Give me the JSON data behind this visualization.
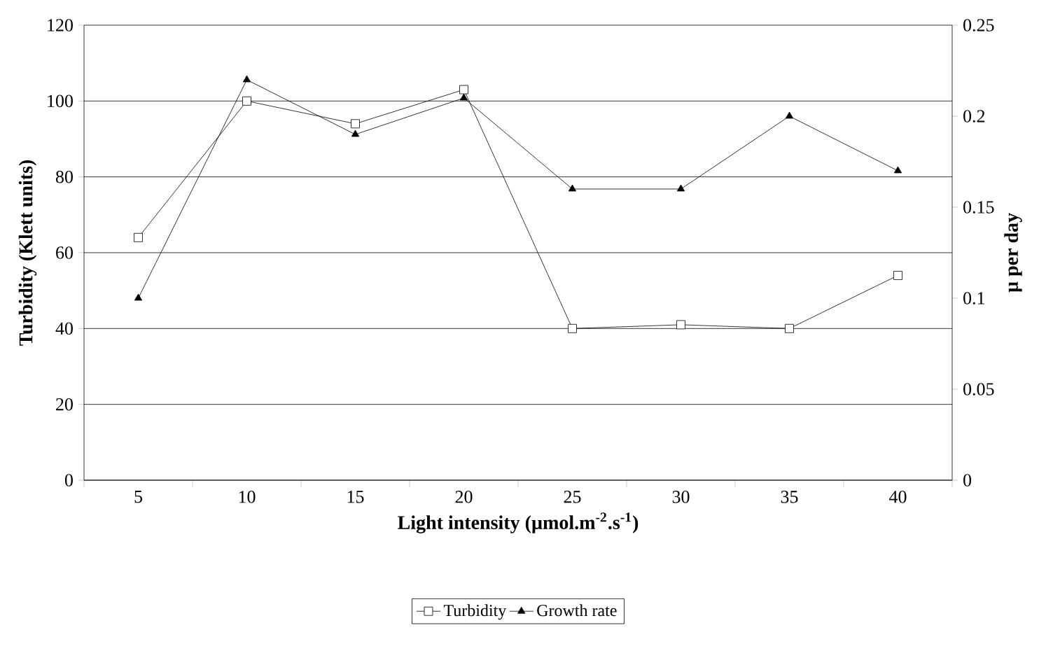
{
  "chart_data": {
    "type": "line",
    "xlabel": "Light intensity (**µ**mol.m$^{-2}$.s$^{-1}$)",
    "ylabel": "Turbidity (Klett units)",
    "y2label": "µ per day",
    "categories": [
      "5",
      "10",
      "15",
      "20",
      "25",
      "30",
      "35",
      "40"
    ],
    "series": [
      {
        "name": "Turbidity",
        "color": "#000000",
        "marker": "square",
        "values": [
          64,
          100,
          94,
          103,
          40,
          41,
          40,
          54
        ]
      },
      {
        "name": "Growth rate",
        "color": "#000000",
        "marker": "triangle",
        "axis": "y2",
        "values": [
          0.1,
          0.22,
          0.19,
          0.21,
          0.16,
          0.16,
          0.2,
          0.17
        ]
      }
    ],
    "ylim": [
      0,
      120
    ],
    "yticks": [
      0,
      20,
      40,
      60,
      80,
      100,
      120
    ],
    "y2lim": [
      0,
      0.25
    ],
    "y2ticks": [
      0,
      0.05,
      0.1,
      0.15,
      0.2,
      0.25
    ],
    "grid": "y",
    "legend": "bottom",
    "line_style": "solid"
  }
}
